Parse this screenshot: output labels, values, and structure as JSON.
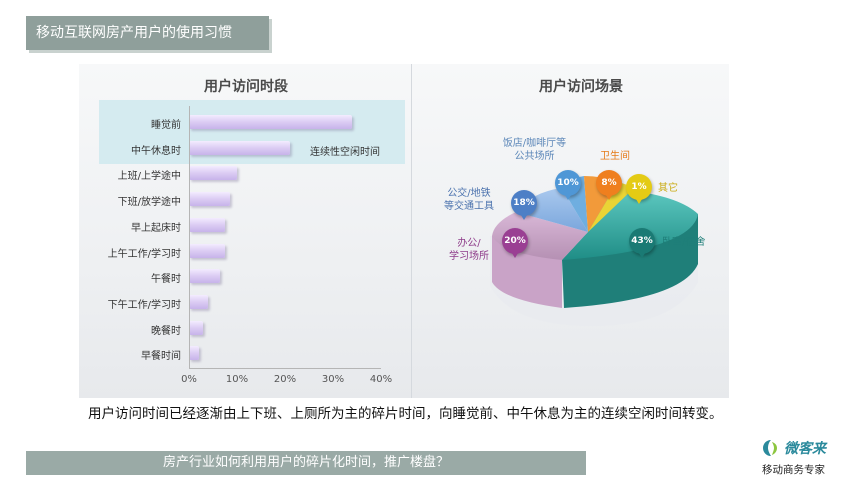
{
  "header": {
    "title": "移动互联网房产用户的使用习惯"
  },
  "chart_data": [
    {
      "type": "bar",
      "title": "用户访问时段",
      "categories": [
        "睡觉前",
        "中午休息时",
        "上班/上学途中",
        "下班/放学途中",
        "早上起床时",
        "上午工作/学习时",
        "午餐时",
        "下午工作/学习时",
        "晚餐时",
        "早餐时间"
      ],
      "values": [
        34,
        21,
        10,
        8.5,
        7.5,
        7.5,
        6.5,
        4,
        3,
        2
      ],
      "xlim": [
        0,
        40
      ],
      "xticks": [
        "0%",
        "10%",
        "20%",
        "30%",
        "40%"
      ],
      "annotation": "连续性空闲时间"
    },
    {
      "type": "pie",
      "title": "用户访问场景",
      "slices": [
        {
          "label": "卧室/宿舍",
          "pct": "43%",
          "value": 43,
          "color": "#2aa69f"
        },
        {
          "label": "办公/学习场所",
          "pct": "20%",
          "value": 20,
          "color": "#a3559c"
        },
        {
          "label": "公交/地铁等交通工具",
          "pct": "18%",
          "value": 18,
          "color": "#3b7fc7"
        },
        {
          "label": "饭店/咖啡厅等公共场所",
          "pct": "10%",
          "value": 10,
          "color": "#5aa2dc"
        },
        {
          "label": "卫生间",
          "pct": "8%",
          "value": 8,
          "color": "#f08a28"
        },
        {
          "label": "其它",
          "pct": "1%",
          "value": 1,
          "color": "#e7cf1c"
        }
      ]
    }
  ],
  "pie_labels": {
    "l_cafe_1": "饭店/咖啡厅等",
    "l_cafe_2": "公共场所",
    "l_bath": "卫生间",
    "l_other": "其它",
    "l_bus_1": "公交/地铁",
    "l_bus_2": "等交通工具",
    "l_office_1": "办公/",
    "l_office_2": "学习场所",
    "l_bed": "卧室/宿舍"
  },
  "description": "用户访问时间已经逐渐由上下班、上厕所为主的碎片时间，向睡觉前、中午休息为主的连续空闲时间转变。",
  "question": "房产行业如何利用用户的碎片化时间，推广楼盘？",
  "logo": {
    "name": "微客来",
    "tagline": "移动商务专家"
  }
}
